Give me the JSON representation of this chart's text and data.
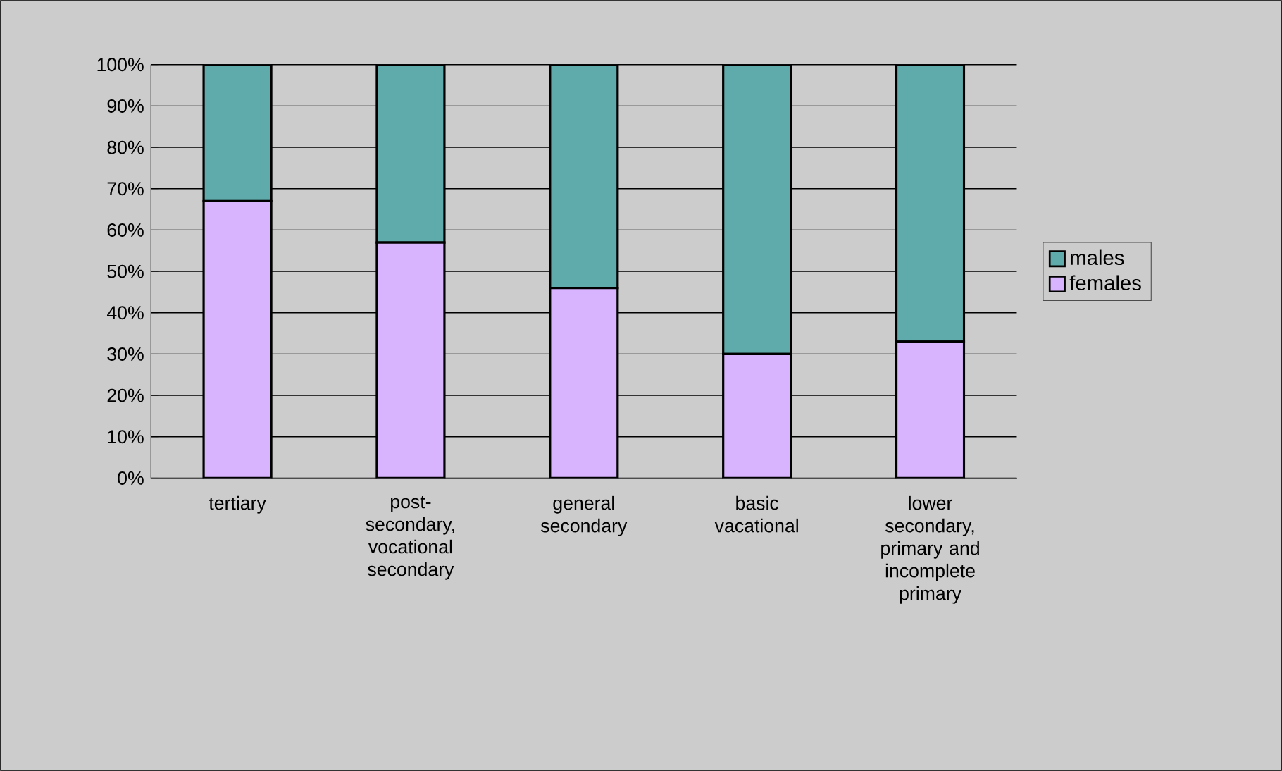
{
  "chart_data": {
    "type": "bar",
    "stacked": true,
    "categories": [
      "tertiary",
      "post-secondary, vocational secondary",
      "general secondary",
      "basic vacational",
      "lower secondary, primary and incomplete primary"
    ],
    "series": [
      {
        "name": "females",
        "color": "#d8b4ff",
        "values": [
          67,
          57,
          46,
          30,
          33
        ]
      },
      {
        "name": "males",
        "color": "#5fabab",
        "values": [
          33,
          43,
          54,
          70,
          67
        ]
      }
    ],
    "ylim": [
      0,
      100
    ],
    "yticks": [
      {
        "value": 0,
        "label": "0%"
      },
      {
        "value": 10,
        "label": "10%"
      },
      {
        "value": 20,
        "label": "20%"
      },
      {
        "value": 30,
        "label": "30%"
      },
      {
        "value": 40,
        "label": "40%"
      },
      {
        "value": 50,
        "label": "50%"
      },
      {
        "value": 60,
        "label": "60%"
      },
      {
        "value": 70,
        "label": "70%"
      },
      {
        "value": 80,
        "label": "80%"
      },
      {
        "value": 90,
        "label": "90%"
      },
      {
        "value": 100,
        "label": "100%"
      }
    ],
    "grid": "y",
    "legend": "right"
  }
}
